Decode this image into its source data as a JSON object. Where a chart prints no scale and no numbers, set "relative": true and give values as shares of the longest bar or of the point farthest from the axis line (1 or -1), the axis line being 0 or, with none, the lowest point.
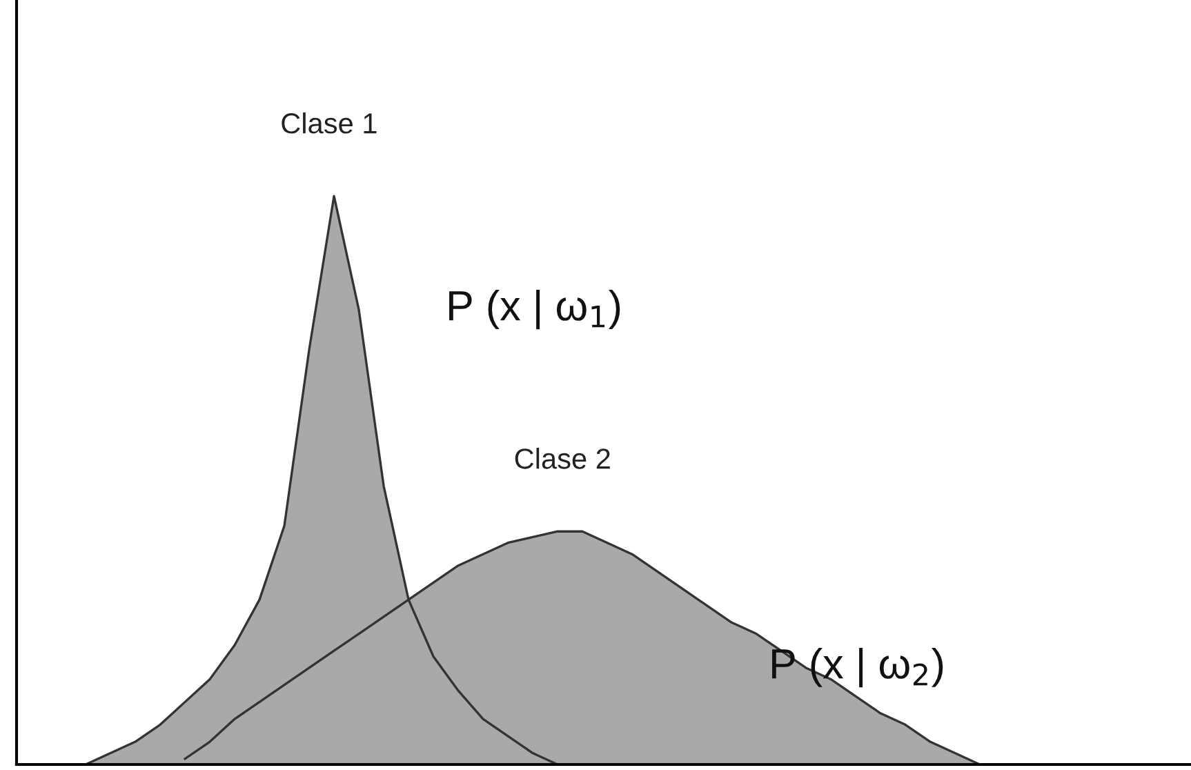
{
  "chart_data": {
    "type": "area",
    "relative": true,
    "legend": false,
    "categories": [
      null,
      null,
      null,
      null,
      null,
      null,
      null,
      null,
      null,
      null,
      null,
      null,
      null,
      null,
      null,
      null,
      null,
      null,
      null,
      null,
      null,
      null,
      null,
      null,
      null,
      null,
      null,
      null,
      null,
      null,
      null,
      null,
      null,
      null,
      null,
      null,
      null
    ],
    "series": [
      {
        "name": "Clase 1",
        "color": "#a9a9a9",
        "values": [
          0,
          0.02,
          0.04,
          0.07,
          0.11,
          0.15,
          0.21,
          0.29,
          0.42,
          0.73,
          1,
          0.8,
          0.49,
          0.29,
          0.19,
          0.13,
          0.08,
          0.05,
          0.02,
          0,
          null,
          null,
          null,
          null,
          null,
          null,
          null,
          null,
          null,
          null,
          null,
          null,
          null,
          null,
          null,
          null,
          null
        ]
      },
      {
        "name": "Clase 2",
        "color": "#a9a9a9",
        "values": [
          null,
          null,
          null,
          null,
          0.01,
          0.04,
          0.08,
          0.11,
          0.14,
          0.17,
          0.2,
          0.23,
          0.26,
          0.29,
          0.32,
          0.35,
          0.37,
          0.39,
          0.4,
          0.41,
          0.41,
          0.39,
          0.37,
          0.34,
          0.31,
          0.28,
          0.25,
          0.23,
          0.2,
          0.17,
          0.15,
          0.12,
          0.09,
          0.07,
          0.04,
          0.02,
          0
        ]
      }
    ],
    "annotations": [
      "P (x | ω$_{1}$)",
      "P (x | ω$_{2}$)"
    ]
  }
}
